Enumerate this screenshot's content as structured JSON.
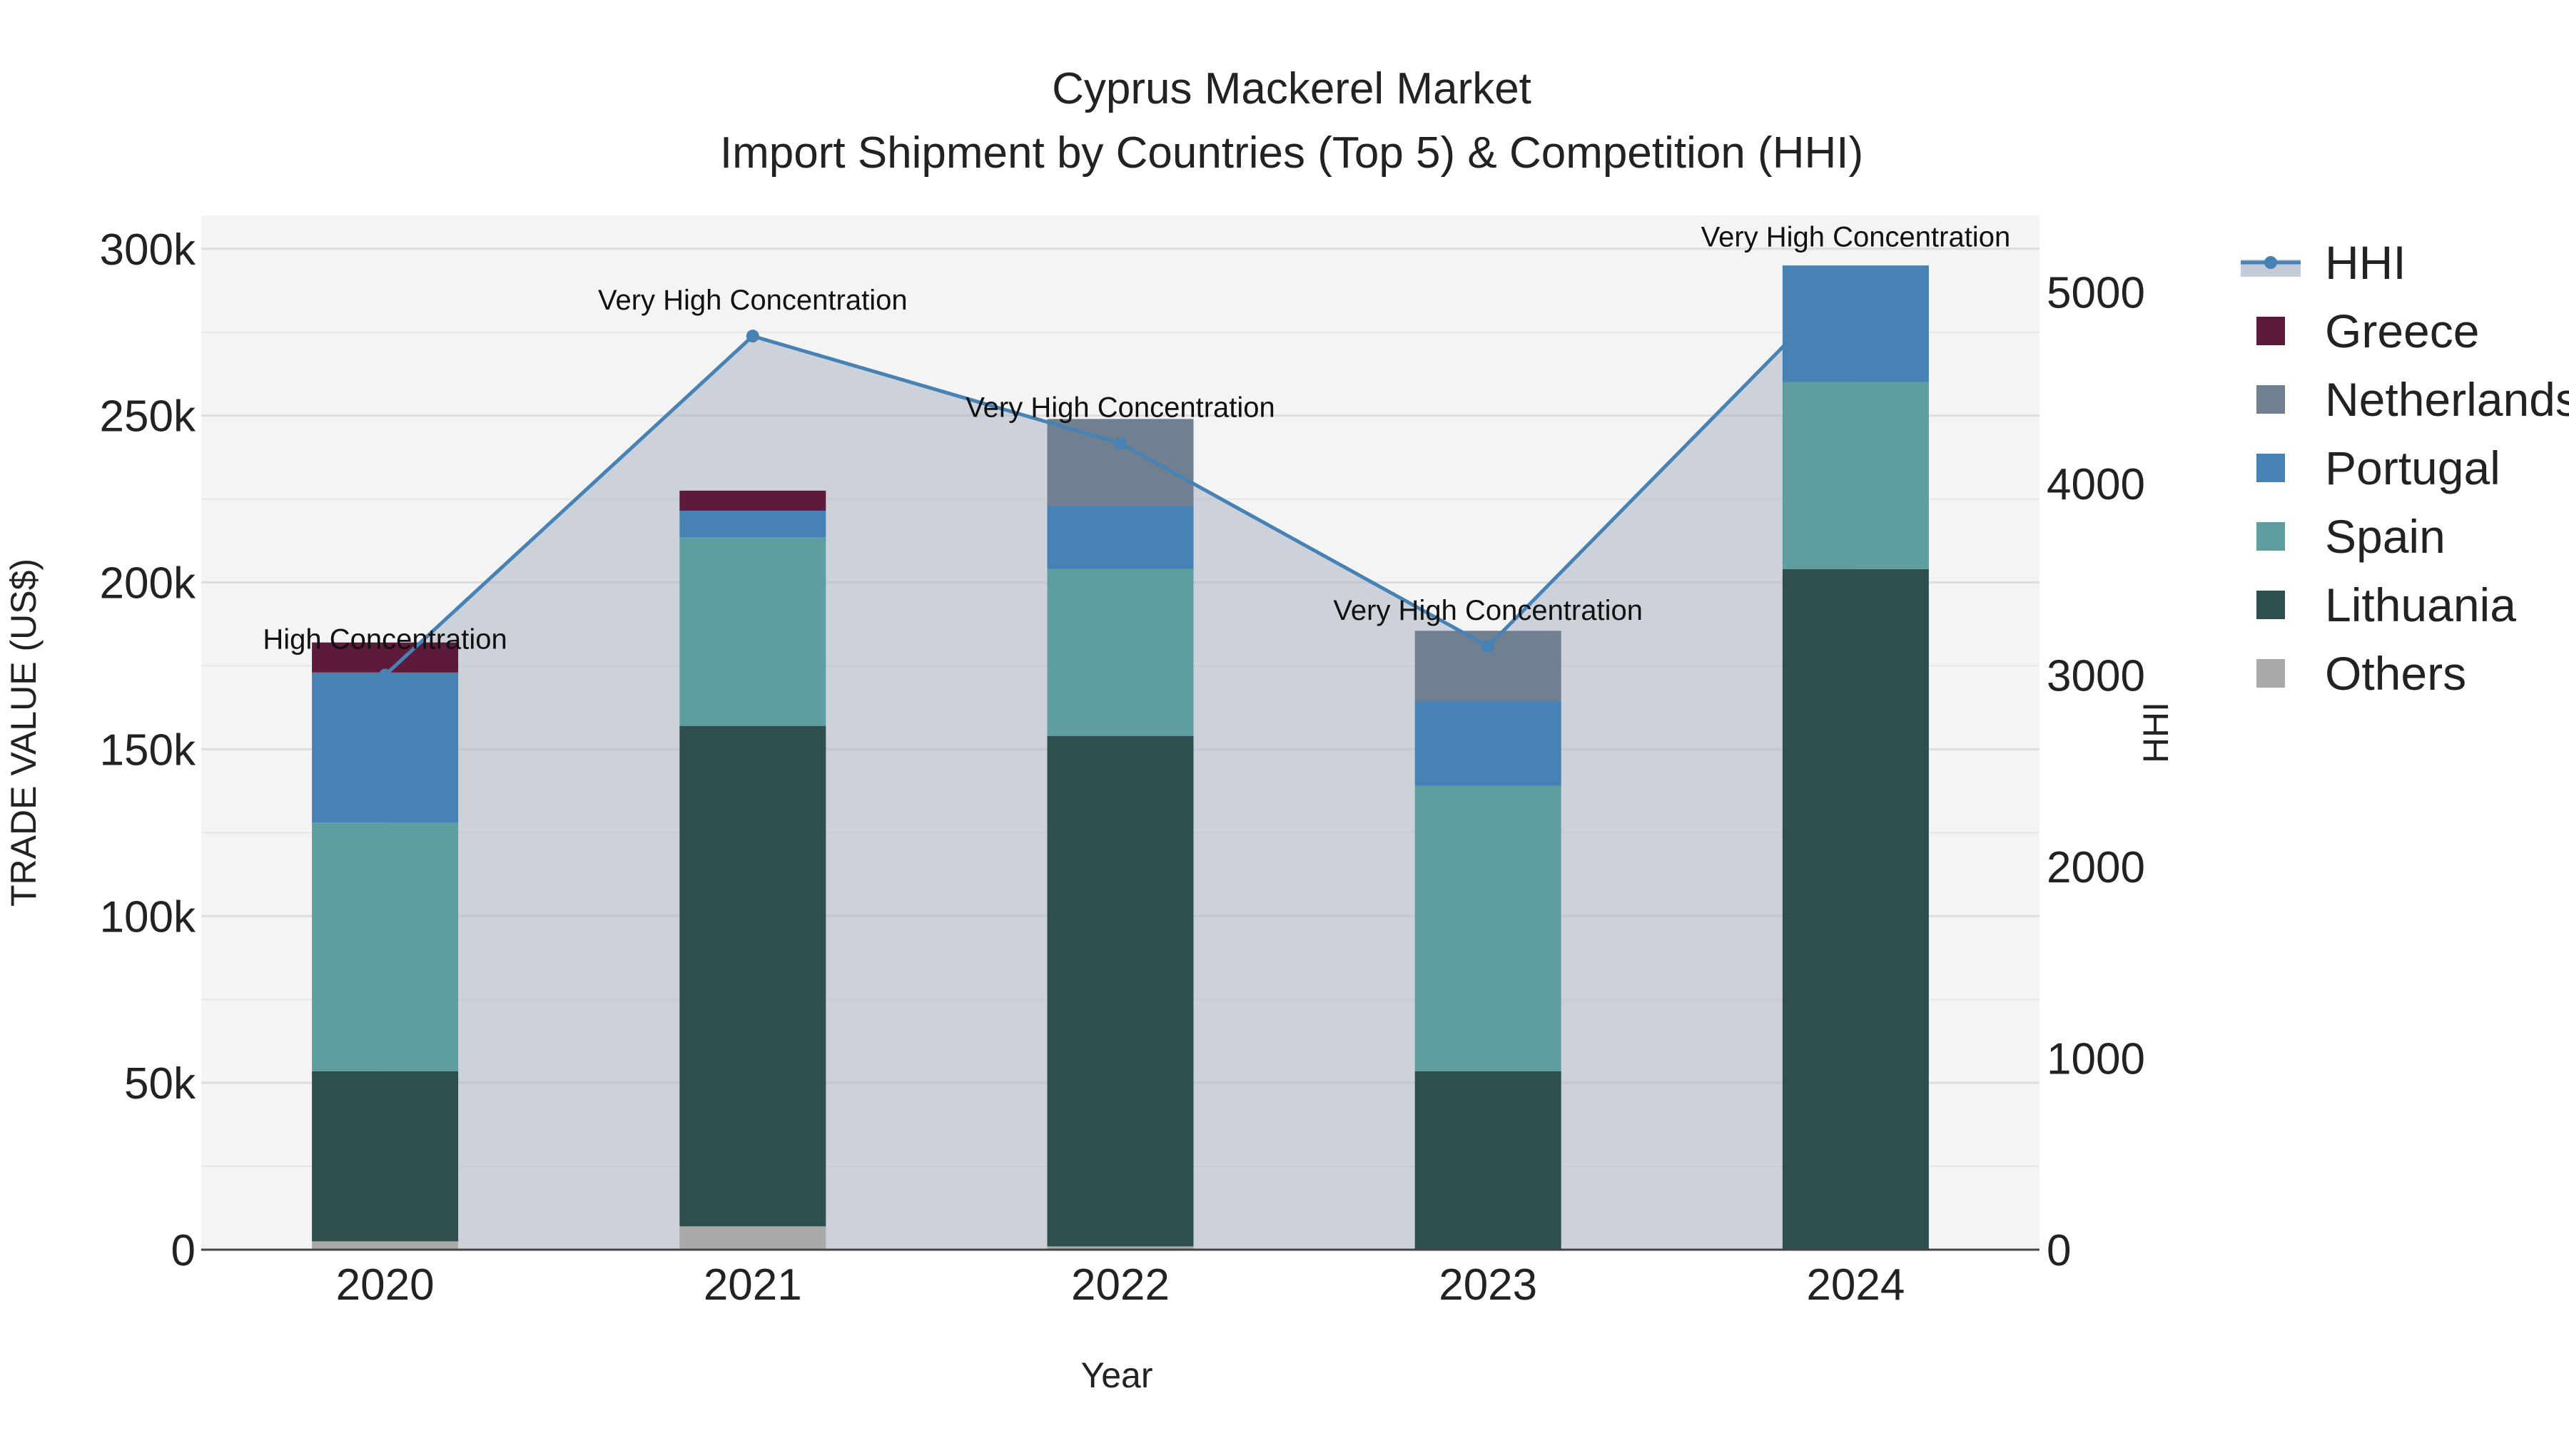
{
  "chart_data": {
    "type": "bar",
    "title": "Cyprus Mackerel Market",
    "subtitle": "Import Shipment by Countries (Top 5) & Competition (HHI)",
    "xlabel": "Year",
    "ylabel": "TRADE VALUE (US$)",
    "y2label": "HHI",
    "categories": [
      "2020",
      "2021",
      "2022",
      "2023",
      "2024"
    ],
    "ylim": [
      0,
      310000
    ],
    "yticks": [
      0,
      50000,
      100000,
      150000,
      200000,
      250000,
      300000
    ],
    "ytick_labels": [
      "0",
      "50k",
      "100k",
      "150k",
      "200k",
      "250k",
      "300k"
    ],
    "y2lim": [
      0,
      5400
    ],
    "y2ticks": [
      0,
      1000,
      2000,
      3000,
      4000,
      5000
    ],
    "y2tick_labels": [
      "0",
      "1000",
      "2000",
      "3000",
      "4000",
      "5000"
    ],
    "grid": true,
    "legend_position": "right",
    "series": [
      {
        "name": "Others",
        "color": "#a9a9a9",
        "values": [
          2500,
          7000,
          1000,
          0,
          0
        ]
      },
      {
        "name": "Lithuania",
        "color": "#2f4f4f",
        "values": [
          51000,
          150000,
          153000,
          53500,
          204000
        ]
      },
      {
        "name": "Spain",
        "color": "#5f9ea0",
        "values": [
          74500,
          56500,
          50000,
          85500,
          56000
        ]
      },
      {
        "name": "Portugal",
        "color": "#4682b4",
        "values": [
          45000,
          8000,
          19000,
          25500,
          35000
        ]
      },
      {
        "name": "Netherlands",
        "color": "#708090",
        "values": [
          0,
          0,
          26000,
          21000,
          0
        ]
      },
      {
        "name": "Greece",
        "color": "#5e1a3a",
        "values": [
          9000,
          6000,
          0,
          0,
          0
        ]
      }
    ],
    "legend_order": [
      "HHI",
      "Greece",
      "Netherlands",
      "Portugal",
      "Spain",
      "Lithuania",
      "Others"
    ],
    "hhi": {
      "name": "HHI",
      "color": "#4682b4",
      "values": [
        3000,
        4770,
        4210,
        3150,
        5100
      ],
      "annotations": [
        "High Concentration",
        "Very High Concentration",
        "Very High Concentration",
        "Very High Concentration",
        "Very High Concentration"
      ]
    }
  }
}
